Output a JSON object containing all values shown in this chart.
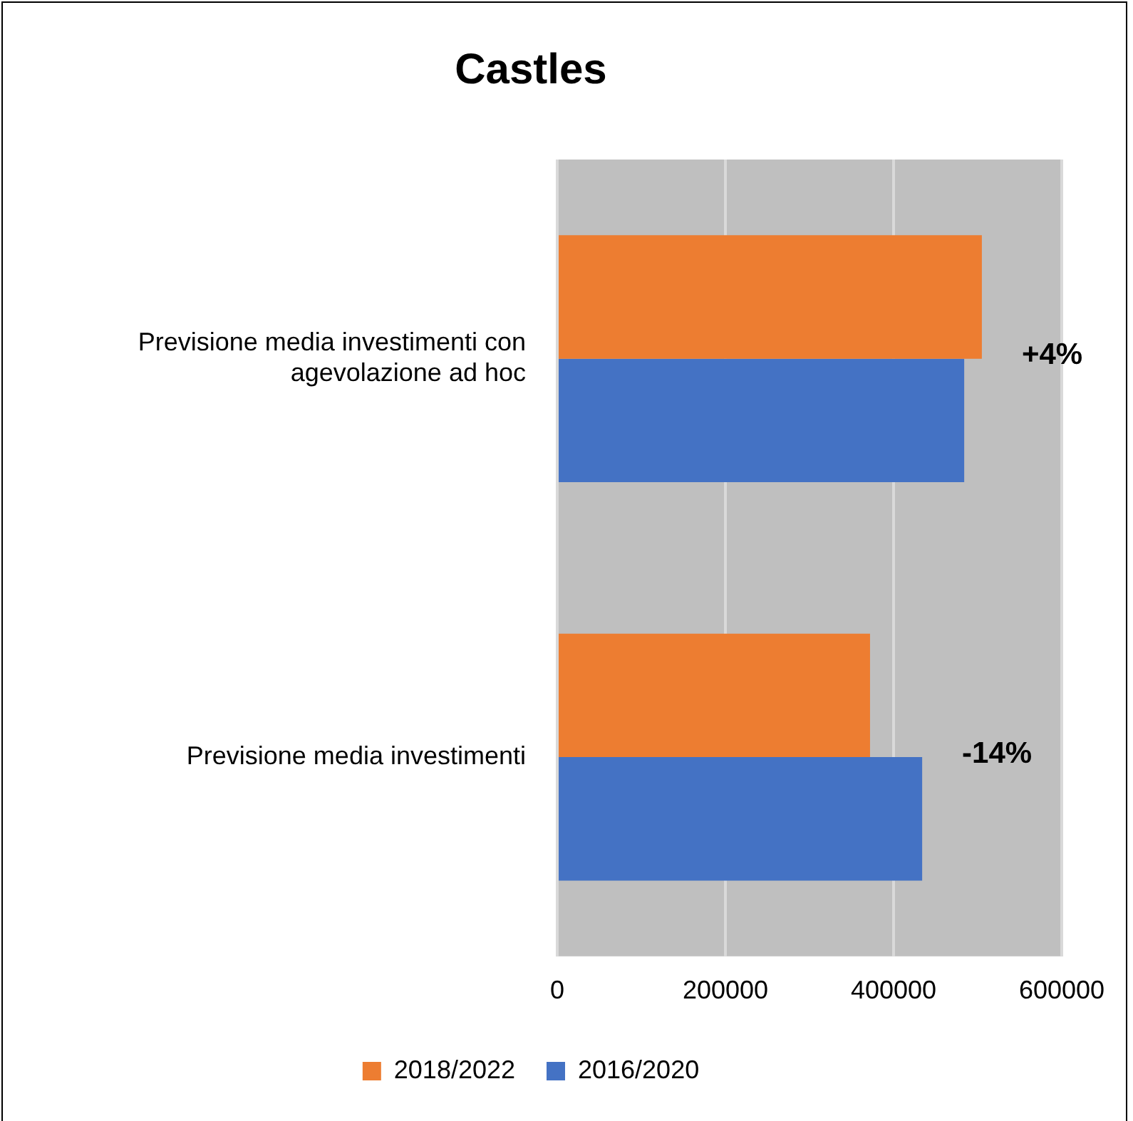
{
  "chart_data": {
    "type": "bar",
    "orientation": "horizontal",
    "title": "Castles",
    "categories": [
      "Previsione media investimenti con agevolazione ad hoc",
      "Previsione media investimenti"
    ],
    "series": [
      {
        "name": "2018/2022",
        "color": "#ed7d31",
        "values": [
          505000,
          372000
        ]
      },
      {
        "name": "2016/2020",
        "color": "#4472c4",
        "values": [
          484000,
          434000
        ]
      }
    ],
    "xlim": [
      0,
      600000
    ],
    "xticks": [
      0,
      200000,
      400000,
      600000
    ],
    "grid": "x",
    "legend": "bottom",
    "annotations": [
      "+4%",
      "-14%"
    ]
  }
}
